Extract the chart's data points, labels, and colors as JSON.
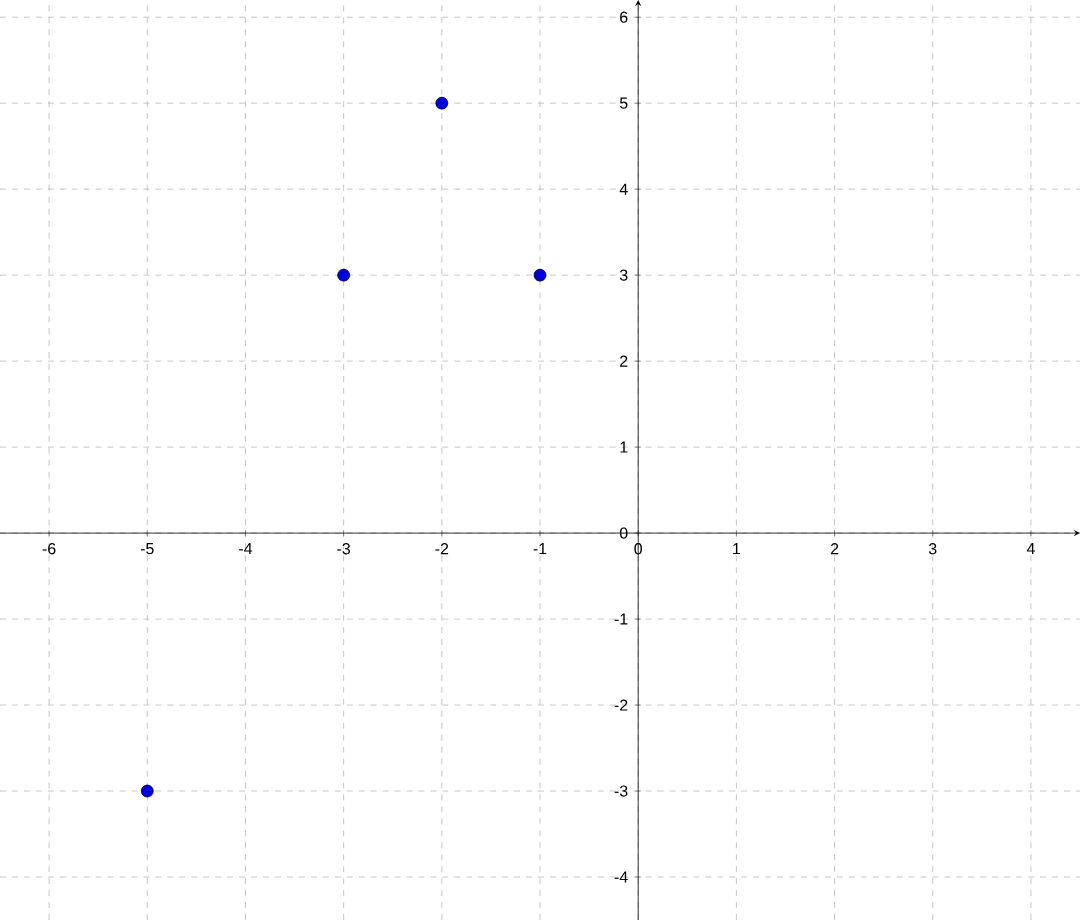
{
  "chart_data": {
    "type": "scatter",
    "x": [
      -5,
      -3,
      -2,
      -1
    ],
    "values": [
      -3,
      3,
      5,
      3
    ],
    "color": "#0000dd",
    "grid": true,
    "xlim": [
      -6.5,
      4.5
    ],
    "ylim": [
      -4.5,
      6.2
    ],
    "xticks": [
      -6,
      -5,
      -4,
      -3,
      -2,
      -1,
      0,
      1,
      2,
      3,
      4
    ],
    "yticks": [
      -4,
      -3,
      -2,
      -1,
      0,
      1,
      2,
      3,
      4,
      5,
      6
    ]
  }
}
